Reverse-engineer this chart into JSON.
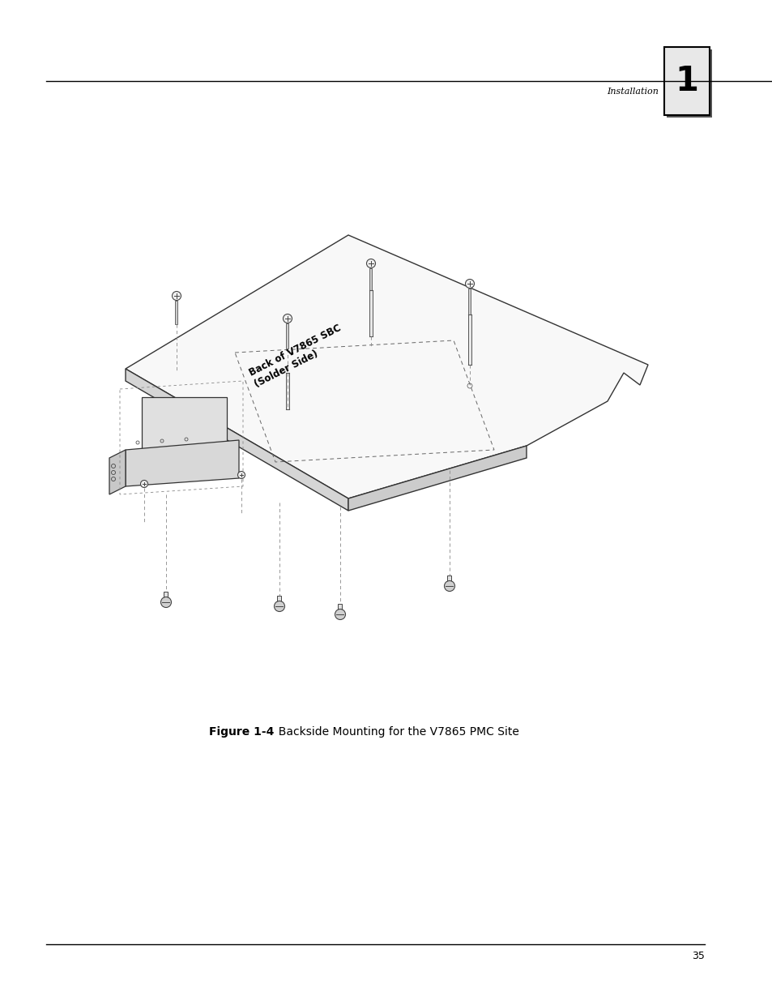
{
  "title_text": "Installation",
  "chapter_num": "1",
  "caption_bold": "Figure 1-4",
  "caption_normal": "  Backside Mounting for the V7865 PMC Site",
  "page_num": "35",
  "bg_color": "#ffffff",
  "line_color": "#000000",
  "text_color": "#000000",
  "diagram_label": "Back of V7865 SBC\n(Solder Side)",
  "fig_width": 9.54,
  "fig_height": 12.35
}
